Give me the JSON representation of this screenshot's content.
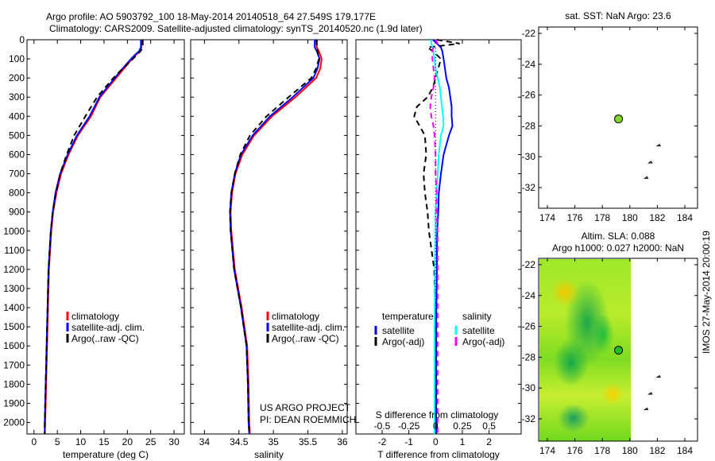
{
  "title_line1": "Argo profile: AO 5903792_100 18-May-2014 20140518_64 27.549S 179.177E",
  "title_line2": "Climatology: CARS2009. Satellite-adjusted climatology: synTS_20140520.nc (1.9d later)",
  "credit": [
    "US ARGO PROJECT",
    "PI: DEAN ROEMMICH"
  ],
  "imos_stamp": "IMOS 27-May-2014 20:00:19",
  "chart_data": [
    {
      "type": "line",
      "name": "temperature",
      "xlabel": "temperature (deg C)",
      "ylabel": "depth",
      "xlim": [
        -1.5,
        32.2
      ],
      "ylim": [
        2060,
        0
      ],
      "xticks": [
        0,
        5,
        10,
        15,
        20,
        25,
        30
      ],
      "yticks": [
        0,
        100,
        200,
        300,
        400,
        500,
        600,
        700,
        800,
        900,
        1000,
        1100,
        1200,
        1300,
        1400,
        1500,
        1600,
        1700,
        1800,
        1900,
        2000
      ],
      "legend": [
        "climatology",
        "satellite-adj. clim.",
        "Argo(..raw -QC)"
      ],
      "depth": [
        0,
        40,
        60,
        80,
        100,
        150,
        200,
        300,
        400,
        500,
        600,
        700,
        800,
        900,
        1000,
        1200,
        1400,
        1600,
        1800,
        2000,
        2060
      ],
      "series": [
        {
          "name": "climatology",
          "color": "#ff0000",
          "values": [
            23,
            23,
            22.6,
            21.8,
            21.0,
            19.3,
            17.6,
            14.2,
            12.2,
            9.4,
            7.4,
            5.8,
            4.8,
            4.1,
            3.7,
            3.2,
            3.0,
            2.8,
            2.6,
            2.4,
            2.3
          ]
        },
        {
          "name": "satellite-adj. clim.",
          "color": "#0000ff",
          "values": [
            22.9,
            22.9,
            22.5,
            21.6,
            20.8,
            19.0,
            17.3,
            14.0,
            11.9,
            9.2,
            7.2,
            5.6,
            4.6,
            4.0,
            3.6,
            3.1,
            2.9,
            2.7,
            2.5,
            2.3,
            2.3
          ]
        },
        {
          "name": "Argo(..raw -QC)",
          "color": "#000000",
          "dash": true,
          "values": [
            23.3,
            23.3,
            22.8,
            22,
            21.2,
            19.0,
            17.0,
            13.5,
            11.0,
            8.6,
            7.0,
            5.6,
            4.7,
            4.0,
            3.6,
            3.1,
            2.9,
            2.7,
            2.5,
            2.3,
            2.3
          ]
        }
      ]
    },
    {
      "type": "line",
      "name": "salinity",
      "xlabel": "salinity",
      "xlim": [
        33.8,
        36.07
      ],
      "ylim": [
        2060,
        0
      ],
      "xticks": [
        34,
        34.5,
        35,
        35.5,
        36
      ],
      "legend": [
        "climatology",
        "satellite-adj. clim.",
        "Argo(..raw -QC)"
      ],
      "depth": [
        0,
        40,
        60,
        100,
        150,
        200,
        300,
        400,
        500,
        600,
        700,
        800,
        900,
        1000,
        1200,
        1400,
        1600,
        1800,
        2000,
        2060
      ],
      "series": [
        {
          "name": "climatology",
          "color": "#ff0000",
          "values": [
            35.62,
            35.63,
            35.66,
            35.7,
            35.68,
            35.62,
            35.32,
            34.98,
            34.72,
            34.55,
            34.45,
            34.4,
            34.38,
            34.39,
            34.44,
            34.54,
            34.62,
            34.64,
            34.65,
            34.66
          ]
        },
        {
          "name": "satellite-adj. clim.",
          "color": "#0000ff",
          "values": [
            35.6,
            35.6,
            35.63,
            35.67,
            35.64,
            35.58,
            35.28,
            34.95,
            34.7,
            34.53,
            34.44,
            34.39,
            34.37,
            34.38,
            34.43,
            34.53,
            34.61,
            34.63,
            34.64,
            34.65
          ]
        },
        {
          "name": "Argo(..raw -QC)",
          "color": "#000000",
          "dash": true,
          "values": [
            35.63,
            35.63,
            35.64,
            35.66,
            35.62,
            35.55,
            35.22,
            34.9,
            34.66,
            34.52,
            34.44,
            34.39,
            34.37,
            34.38,
            34.43,
            34.53,
            34.61,
            34.63,
            34.64,
            34.65
          ]
        }
      ]
    },
    {
      "type": "line",
      "name": "difference",
      "xlabel": "T difference from climatology",
      "x2label": "S difference from climatology",
      "xlim": [
        -2.98,
        3.2
      ],
      "ylim": [
        2060,
        0
      ],
      "xticks": [
        -2,
        -1,
        0,
        1,
        2
      ],
      "x2ticks": [
        -0.5,
        -0.25,
        0,
        0.25,
        0.5
      ],
      "legend": {
        "temperature": [
          "temperature",
          "satellite",
          "Argo(-adj)"
        ],
        "salinity": [
          "salinity",
          "satellite",
          "Argo(-adj)"
        ]
      },
      "depth": [
        0,
        20,
        40,
        60,
        100,
        150,
        200,
        250,
        300,
        350,
        400,
        450,
        500,
        600,
        700,
        800,
        900,
        1000,
        1100,
        1200,
        1500,
        2060
      ],
      "series": [
        {
          "name": "T satellite",
          "color": "#0000ff",
          "unit": "T",
          "values": [
            -0.1,
            0.05,
            0.2,
            0.25,
            0.3,
            0.35,
            0.4,
            0.5,
            0.55,
            0.6,
            0.6,
            0.63,
            0.5,
            0.3,
            0.2,
            0.12,
            0.1,
            0.06,
            0.05,
            0.05,
            0.02,
            0.02
          ]
        },
        {
          "name": "T Argo(-adj)",
          "color": "#000000",
          "dash": true,
          "unit": "T",
          "values": [
            0.05,
            0.9,
            -0.3,
            -0.1,
            0.2,
            0.1,
            0.0,
            -0.1,
            -0.3,
            -0.7,
            -0.8,
            -0.6,
            -0.4,
            -0.35,
            -0.45,
            -0.4,
            -0.3,
            -0.25,
            -0.15,
            -0.05,
            0.0,
            0.0
          ]
        },
        {
          "name": "S satellite",
          "color": "#00ffff",
          "unit": "S",
          "values": [
            -0.04,
            -0.04,
            -0.03,
            -0.02,
            -0.01,
            0.0,
            0.02,
            0.04,
            0.05,
            0.06,
            0.07,
            0.075,
            0.05,
            0.03,
            0.02,
            0.01,
            0.0,
            0.0,
            -0.005,
            -0.005,
            -0.01,
            -0.01
          ]
        },
        {
          "name": "S Argo(-adj)",
          "color": "#ff00ff",
          "dash": true,
          "unit": "S",
          "values": [
            0.0,
            0.02,
            -0.02,
            -0.03,
            -0.03,
            -0.02,
            -0.01,
            -0.02,
            -0.04,
            -0.05,
            -0.04,
            -0.02,
            -0.01,
            0.0,
            0.0,
            0.01,
            0.01,
            0.02,
            0.02,
            0.02,
            0.02,
            0.02
          ]
        }
      ]
    },
    {
      "type": "scatter",
      "name": "sst_map",
      "title": "sat. SST: NaN Argo: 23.6",
      "xlim": [
        173.4,
        185
      ],
      "ylim": [
        -33.4,
        -21.6
      ],
      "xticks": [
        174,
        176,
        178,
        180,
        182,
        184
      ],
      "yticks": [
        -22,
        -24,
        -26,
        -28,
        -30,
        -32
      ],
      "points": [
        {
          "lon": 179.177,
          "lat": -27.549
        }
      ]
    },
    {
      "type": "heatmap",
      "name": "sla_map",
      "title_line1": "Altim. SLA: 0.088",
      "title_line2": "Argo h1000: 0.027 h2000: NaN",
      "xlim": [
        173.4,
        185
      ],
      "ylim": [
        -33.4,
        -21.6
      ],
      "xticks": [
        174,
        176,
        178,
        180,
        182,
        184
      ],
      "yticks": [
        -22,
        -24,
        -26,
        -28,
        -30,
        -32
      ],
      "points": [
        {
          "lon": 179.177,
          "lat": -27.549
        }
      ]
    }
  ]
}
